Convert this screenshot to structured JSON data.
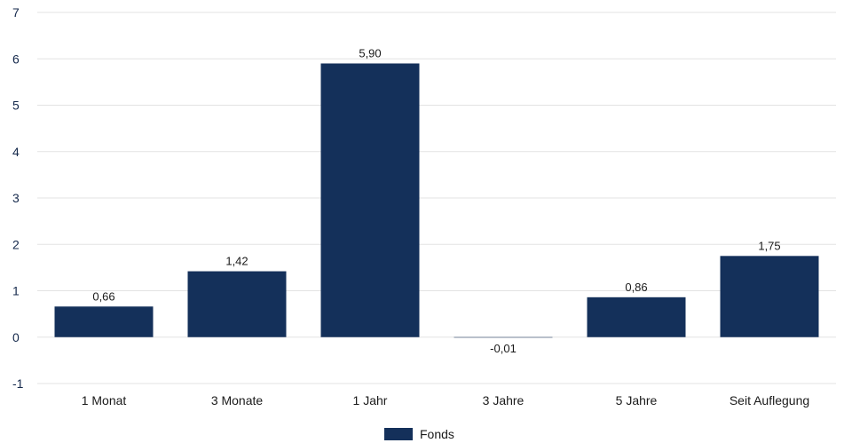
{
  "chart_data": {
    "type": "bar",
    "categories": [
      "1 Monat",
      "3 Monate",
      "1 Jahr",
      "3 Jahre",
      "5 Jahre",
      "Seit Auflegung"
    ],
    "series": [
      {
        "name": "Fonds",
        "values": [
          0.66,
          1.42,
          5.9,
          -0.01,
          0.86,
          1.75
        ],
        "labels": [
          "0,66",
          "1,42",
          "5,90",
          "-0,01",
          "0,86",
          "1,75"
        ],
        "color": "#14305a"
      }
    ],
    "yticks": [
      "-1",
      "0",
      "1",
      "2",
      "3",
      "4",
      "5",
      "6",
      "7"
    ],
    "ylim": [
      -1,
      7
    ],
    "grid": true,
    "legend_position": "bottom-center",
    "title": "",
    "xlabel": "",
    "ylabel": ""
  },
  "legend": {
    "label": "Fonds",
    "color": "#14305a"
  }
}
